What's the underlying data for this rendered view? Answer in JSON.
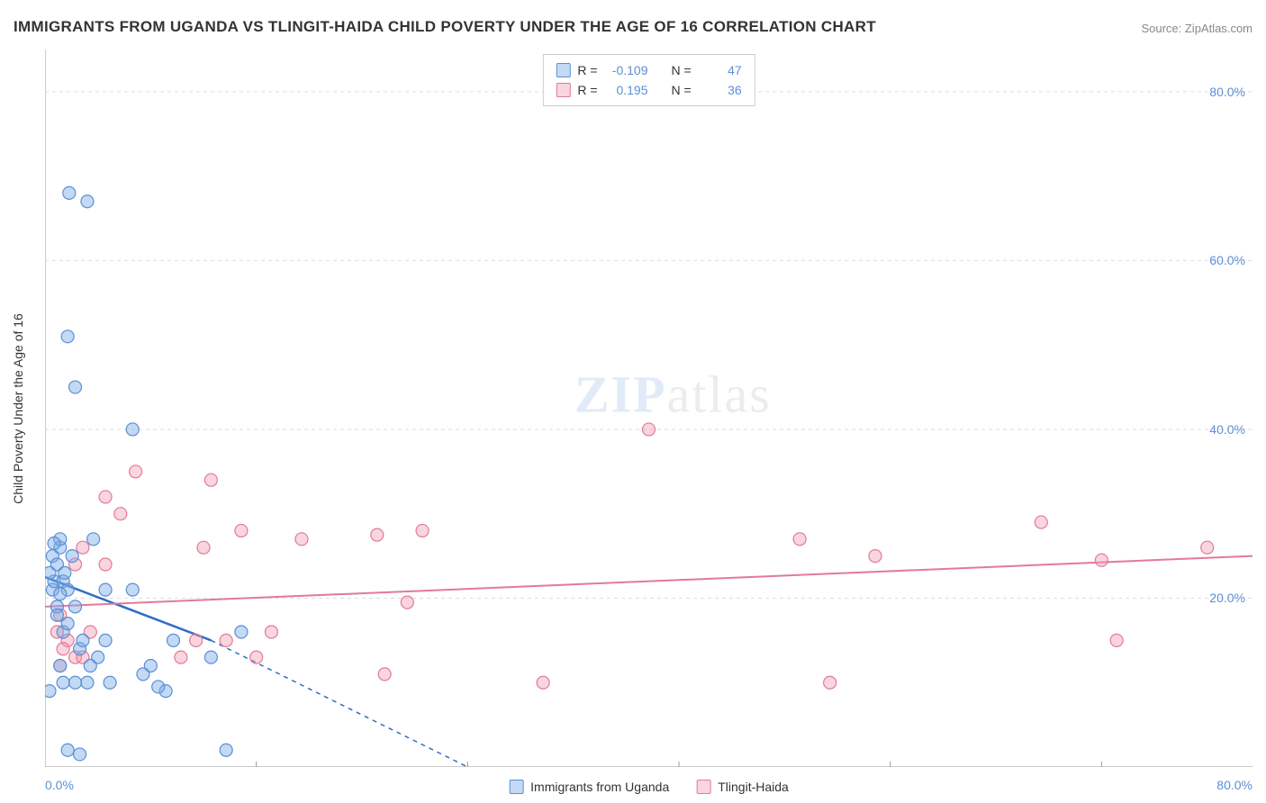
{
  "title": "IMMIGRANTS FROM UGANDA VS TLINGIT-HAIDA CHILD POVERTY UNDER THE AGE OF 16 CORRELATION CHART",
  "source": "Source: ZipAtlas.com",
  "watermark_zip": "ZIP",
  "watermark_rest": "atlas",
  "y_axis_label": "Child Poverty Under the Age of 16",
  "chart": {
    "type": "scatter",
    "background_color": "#ffffff",
    "grid_color": "#dddddd",
    "axis_color": "#999999",
    "tick_label_color": "#5b8fd6",
    "xlim": [
      0,
      80
    ],
    "ylim": [
      0,
      85
    ],
    "x_ticks": [
      0,
      80
    ],
    "x_tick_labels": [
      "0.0%",
      "80.0%"
    ],
    "x_minor_ticks": [
      14,
      28,
      42,
      56,
      70
    ],
    "y_ticks": [
      20,
      40,
      60,
      80
    ],
    "y_tick_labels": [
      "20.0%",
      "40.0%",
      "60.0%",
      "80.0%"
    ],
    "series": [
      {
        "name": "Immigrants from Uganda",
        "marker_fill": "rgba(122,171,230,0.45)",
        "marker_stroke": "#5b8fd6",
        "marker_radius": 7,
        "line_color": "#2e6fc4",
        "line_width": 2.5,
        "R": "-0.109",
        "N": "47",
        "trend": {
          "x1": 0,
          "y1": 22.5,
          "x2": 11,
          "y2": 15
        },
        "trend_dash": {
          "x1": 11,
          "y1": 15,
          "x2": 28,
          "y2": 0
        },
        "points": [
          [
            0.5,
            21
          ],
          [
            0.6,
            22
          ],
          [
            0.8,
            19
          ],
          [
            0.8,
            18
          ],
          [
            1,
            26
          ],
          [
            1,
            27
          ],
          [
            0.5,
            25
          ],
          [
            0.3,
            23
          ],
          [
            1.2,
            22
          ],
          [
            1.5,
            21
          ],
          [
            1,
            12
          ],
          [
            1.2,
            16
          ],
          [
            1.5,
            17
          ],
          [
            2,
            19
          ],
          [
            2.3,
            14
          ],
          [
            2.5,
            15
          ],
          [
            0.3,
            9
          ],
          [
            1.2,
            10
          ],
          [
            2,
            10
          ],
          [
            2.8,
            10
          ],
          [
            4,
            21
          ],
          [
            4.3,
            10
          ],
          [
            3,
            12
          ],
          [
            3.5,
            13
          ],
          [
            4,
            15
          ],
          [
            5.8,
            21
          ],
          [
            6.5,
            11
          ],
          [
            8,
            9
          ],
          [
            8.5,
            15
          ],
          [
            7,
            12
          ],
          [
            7.5,
            9.5
          ],
          [
            11,
            13
          ],
          [
            12,
            2
          ],
          [
            13,
            16
          ],
          [
            1.6,
            68
          ],
          [
            2.8,
            67
          ],
          [
            1.5,
            51
          ],
          [
            2,
            45
          ],
          [
            5.8,
            40
          ],
          [
            1.5,
            2
          ],
          [
            2.3,
            1.5
          ],
          [
            0.8,
            24
          ],
          [
            1,
            20.5
          ],
          [
            1.3,
            23
          ],
          [
            0.6,
            26.5
          ],
          [
            1.8,
            25
          ],
          [
            3.2,
            27
          ]
        ]
      },
      {
        "name": "Tlingit-Haida",
        "marker_fill": "rgba(240,150,170,0.4)",
        "marker_stroke": "#e27a99",
        "marker_radius": 7,
        "line_color": "#e27a99",
        "line_width": 2,
        "R": "0.195",
        "N": "36",
        "trend": {
          "x1": 0,
          "y1": 19,
          "x2": 80,
          "y2": 25
        },
        "points": [
          [
            1,
            18
          ],
          [
            1.5,
            15
          ],
          [
            2,
            13
          ],
          [
            0.8,
            16
          ],
          [
            1.2,
            14
          ],
          [
            2.5,
            13
          ],
          [
            3,
            16
          ],
          [
            1,
            12
          ],
          [
            2,
            24
          ],
          [
            2.5,
            26
          ],
          [
            4,
            24
          ],
          [
            4,
            32
          ],
          [
            5,
            30
          ],
          [
            6,
            35
          ],
          [
            9,
            13
          ],
          [
            10,
            15
          ],
          [
            11,
            34
          ],
          [
            10.5,
            26
          ],
          [
            12,
            15
          ],
          [
            13,
            28
          ],
          [
            15,
            16
          ],
          [
            14,
            13
          ],
          [
            17,
            27
          ],
          [
            22,
            27.5
          ],
          [
            24,
            19.5
          ],
          [
            22.5,
            11
          ],
          [
            25,
            28
          ],
          [
            33,
            10
          ],
          [
            40,
            40
          ],
          [
            50,
            27
          ],
          [
            52,
            10
          ],
          [
            55,
            25
          ],
          [
            66,
            29
          ],
          [
            70,
            24.5
          ],
          [
            71,
            15
          ],
          [
            77,
            26
          ]
        ]
      }
    ],
    "legend_labels": {
      "series1": "Immigrants from Uganda",
      "series2": "Tlingit-Haida",
      "R_label": "R =",
      "N_label": "N ="
    }
  }
}
